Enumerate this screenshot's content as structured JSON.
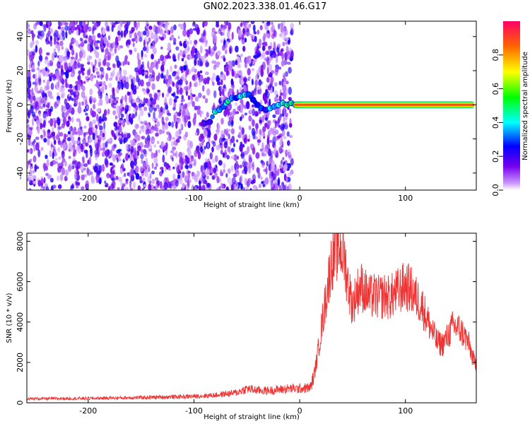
{
  "figure": {
    "title": "GN02.2023.338.01.46.G17"
  },
  "chart_data": [
    {
      "type": "scatter",
      "subtype": "spectrogram",
      "xlabel": "Height of straight line (km)",
      "ylabel": "Frequency (Hz)",
      "xlim": [
        -258,
        167
      ],
      "ylim": [
        -50,
        49
      ],
      "xticks": [
        -200,
        -100,
        0,
        100
      ],
      "yticks": [
        -40,
        -20,
        0,
        20,
        40
      ],
      "colorbar": {
        "label": "Normalized spectral amplitude",
        "ticks": [
          "0.0",
          "0.2",
          "0.4",
          "0.6",
          "0.8"
        ],
        "tick_values": [
          0.0,
          0.2,
          0.4,
          0.6,
          0.8
        ],
        "range": [
          0,
          1
        ],
        "colormap": "rainbow"
      },
      "noise_region": {
        "x": [
          -258,
          -7
        ],
        "gap": [
          -85,
          -82
        ],
        "amplitude_range": [
          0.0,
          0.2
        ]
      },
      "signal_track": {
        "x": [
          -90,
          -85,
          -80,
          -76,
          -72,
          -68,
          -64,
          -60,
          -56,
          -52,
          -48,
          -44,
          -40,
          -36,
          -32,
          -28,
          -24,
          -20,
          -16,
          -12,
          -8,
          -4,
          0
        ],
        "y": [
          -11,
          -10,
          -4,
          -3,
          -1,
          2,
          4,
          4,
          5,
          6,
          6,
          3,
          0,
          -2,
          -3,
          -2,
          -1,
          0,
          1,
          0,
          1,
          0,
          0
        ],
        "amplitude": [
          0.15,
          0.2,
          0.45,
          0.35,
          0.3,
          0.5,
          0.35,
          0.25,
          0.4,
          0.45,
          0.3,
          0.25,
          0.25,
          0.3,
          0.2,
          0.4,
          0.35,
          0.4,
          0.45,
          0.5,
          0.5,
          0.55,
          0.6
        ]
      },
      "carrier_line": {
        "x": [
          -5,
          165
        ],
        "y": 0,
        "amplitude": 0.9
      }
    },
    {
      "type": "line",
      "xlabel": "Height of straight line (km)",
      "ylabel": "SNR (10 * v/v)",
      "xlim": [
        -258,
        167
      ],
      "ylim": [
        0,
        8400
      ],
      "xticks": [
        -200,
        -100,
        0,
        100
      ],
      "yticks": [
        0,
        2000,
        4000,
        6000,
        8000
      ],
      "color": "#ee3333",
      "series": [
        {
          "x": [
            -258,
            -200,
            -150,
            -100,
            -80,
            -60,
            -50,
            -40,
            -30,
            -20,
            -10,
            0,
            10,
            14,
            18,
            22,
            26,
            30,
            34,
            38,
            42,
            46,
            50,
            54,
            58,
            62,
            66,
            70,
            75,
            80,
            85,
            90,
            95,
            100,
            105,
            110,
            115,
            120,
            125,
            130,
            135,
            140,
            145,
            150,
            155,
            160,
            165
          ],
          "y": [
            200,
            220,
            260,
            320,
            380,
            500,
            700,
            620,
            600,
            650,
            700,
            700,
            750,
            1400,
            2800,
            4200,
            5600,
            7000,
            7500,
            7800,
            7200,
            5800,
            4800,
            5500,
            5800,
            5500,
            5200,
            5300,
            5200,
            5300,
            5200,
            5400,
            5600,
            5800,
            5600,
            5200,
            4900,
            4200,
            3600,
            3000,
            2900,
            3300,
            3800,
            3700,
            3400,
            2900,
            2000
          ]
        }
      ]
    }
  ]
}
